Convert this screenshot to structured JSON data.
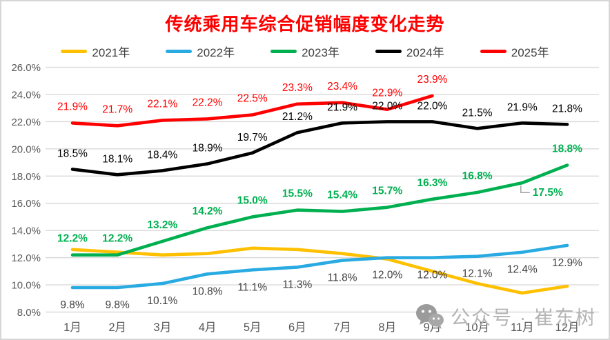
{
  "title": {
    "text": "传统乘用车综合促销幅度变化走势",
    "color": "#FF0000"
  },
  "legend": {
    "items": [
      {
        "label": "2021年",
        "color": "#FFC000"
      },
      {
        "label": "2022年",
        "color": "#29ABE2"
      },
      {
        "label": "2023年",
        "color": "#00B050"
      },
      {
        "label": "2024年",
        "color": "#000000"
      },
      {
        "label": "2025年",
        "color": "#FF0000"
      }
    ]
  },
  "watermark": {
    "icon": "wechat-icon",
    "text": "公众号 · 崔东树",
    "color": "#b5b5b5"
  },
  "chart_data": {
    "type": "line",
    "categories": [
      "1月",
      "2月",
      "3月",
      "4月",
      "5月",
      "6月",
      "7月",
      "8月",
      "9月",
      "10月",
      "11月",
      "12月"
    ],
    "ylim": [
      8,
      26
    ],
    "ytick_step": 2,
    "ytick_labels": [
      "26.0%",
      "24.0%",
      "22.0%",
      "20.0%",
      "18.0%",
      "16.0%",
      "14.0%",
      "12.0%",
      "10.0%",
      "8.0%"
    ],
    "grid": true,
    "legend_position": "top",
    "axis_label_color": "#595959",
    "gridline_color": "#d9d9d9",
    "series": [
      {
        "name": "2021年",
        "color": "#FFC000",
        "values": [
          12.6,
          12.4,
          12.2,
          12.3,
          12.7,
          12.6,
          12.3,
          11.9,
          11.0,
          10.1,
          9.4,
          9.9
        ],
        "labels": null,
        "label_color": null,
        "label_dy": 0,
        "label_bold": false
      },
      {
        "name": "2022年",
        "color": "#29ABE2",
        "values": [
          9.8,
          9.8,
          10.1,
          10.8,
          11.1,
          11.3,
          11.8,
          12.0,
          12.0,
          12.1,
          12.4,
          12.9
        ],
        "labels": [
          "9.8%",
          "9.8%",
          "10.1%",
          "10.8%",
          "11.1%",
          "11.3%",
          "11.8%",
          "12.0%",
          "12.0%",
          "12.1%",
          "12.4%",
          "12.9%"
        ],
        "label_color": "#404040",
        "label_dy": 30,
        "label_bold": false
      },
      {
        "name": "2023年",
        "color": "#00B050",
        "values": [
          12.2,
          12.2,
          13.2,
          14.2,
          15.0,
          15.5,
          15.4,
          15.7,
          16.3,
          16.8,
          17.5,
          18.8
        ],
        "labels": [
          "12.2%",
          "12.2%",
          "13.2%",
          "14.2%",
          "15.0%",
          "15.5%",
          "15.4%",
          "15.7%",
          "16.3%",
          "16.8%",
          "17.5%",
          "18.8%"
        ],
        "label_color": "#00B050",
        "label_dy": -19,
        "label_bold": true,
        "callout_index": 10,
        "callout_color": "#a6a6a6"
      },
      {
        "name": "2024年",
        "color": "#000000",
        "values": [
          18.5,
          18.1,
          18.4,
          18.9,
          19.7,
          21.2,
          21.9,
          22.0,
          22.0,
          21.5,
          21.9,
          21.8
        ],
        "labels": [
          "18.5%",
          "18.1%",
          "18.4%",
          "18.9%",
          "19.7%",
          "21.2%",
          "21.9%",
          "22.0%",
          "22.0%",
          "21.5%",
          "21.9%",
          "21.8%"
        ],
        "label_color": "#000000",
        "label_dy": -18,
        "label_bold": false
      },
      {
        "name": "2025年",
        "color": "#FF0000",
        "values": [
          21.9,
          21.7,
          22.1,
          22.2,
          22.5,
          23.3,
          23.4,
          22.9,
          23.9,
          null,
          null,
          null
        ],
        "labels": [
          "21.9%",
          "21.7%",
          "22.1%",
          "22.2%",
          "22.5%",
          "23.3%",
          "23.4%",
          "22.9%",
          "23.9%",
          null,
          null,
          null
        ],
        "label_color": "#FF0000",
        "label_dy": -19,
        "label_bold": false
      }
    ]
  }
}
